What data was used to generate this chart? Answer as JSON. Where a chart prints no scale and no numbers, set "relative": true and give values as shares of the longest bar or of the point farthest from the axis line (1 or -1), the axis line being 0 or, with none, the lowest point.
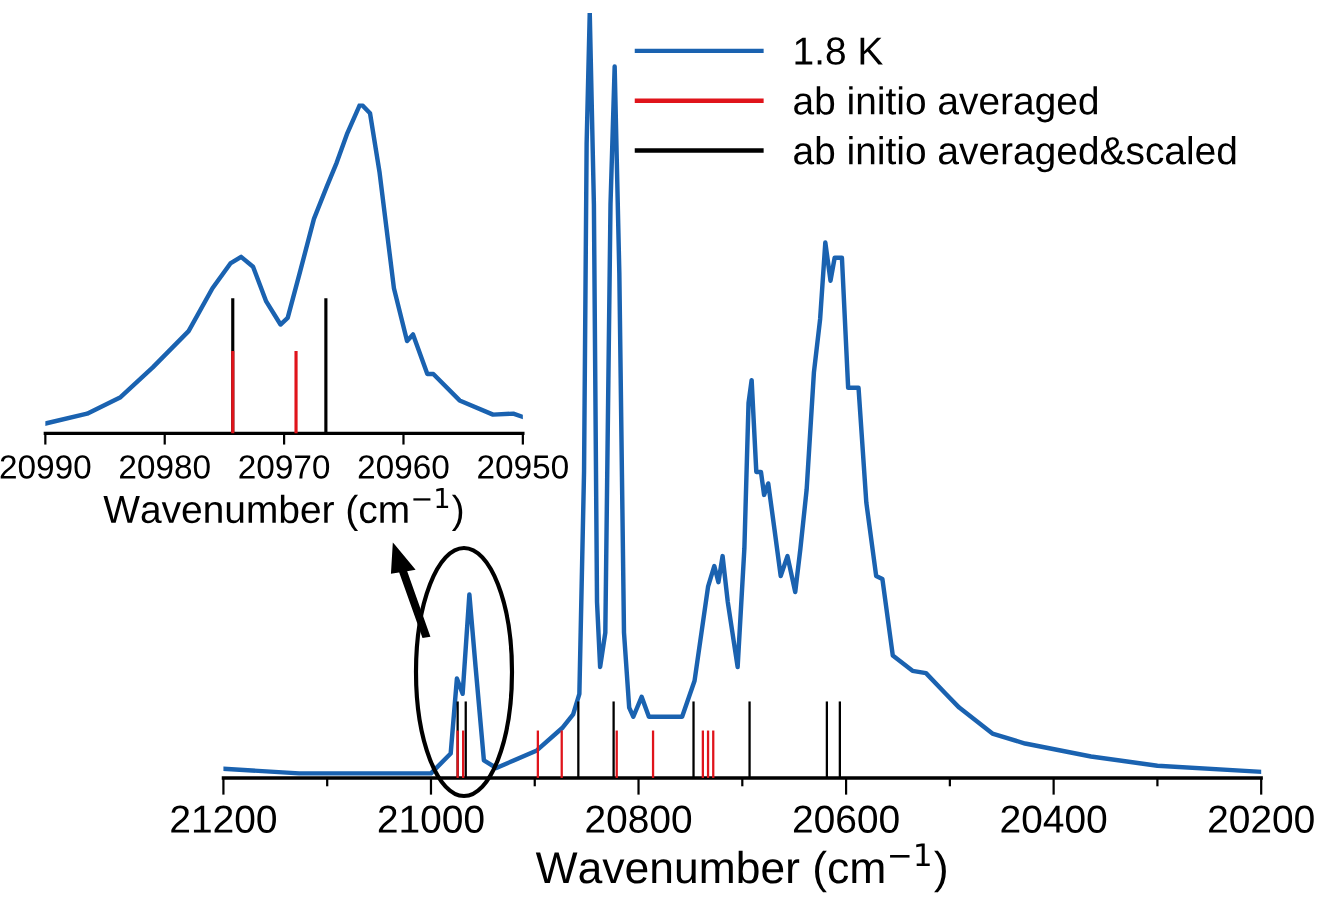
{
  "chart_data": [
    {
      "type": "line",
      "relative": true,
      "xlabel": "Wavenumber (cm$^{−1}$)",
      "xlim": [
        21200,
        20200
      ],
      "xticks": [
        21200,
        {
          "value": 21100,
          "label": null
        },
        21000,
        {
          "value": 20900,
          "label": null
        },
        20800,
        {
          "value": 20700,
          "label": null
        },
        20600,
        {
          "value": 20500,
          "label": null
        },
        20400,
        {
          "value": 20300,
          "label": null
        },
        20200
      ],
      "legend": "top right",
      "grid": false,
      "tick_labels": "x",
      "series": [
        {
          "name": "1.8 K",
          "color": "#1a62b0",
          "x": [
            21200,
            21127,
            21000,
            20981,
            20975,
            20969.5,
            20963,
            20957,
            20949,
            20937,
            20898,
            20873,
            20863,
            20857,
            20852.5,
            20850,
            20847,
            20843,
            20840,
            20837,
            20832,
            20827,
            20823,
            20818.5,
            20814,
            20809,
            20805,
            20797,
            20790,
            20771,
            20758,
            20746,
            20733,
            20727,
            20723,
            20719,
            20714,
            20704.5,
            20698,
            20694,
            20691,
            20686.5,
            20682,
            20679,
            20675,
            20669,
            20663,
            20656.5,
            20649,
            20644,
            20638,
            20631,
            20625,
            20620,
            20615,
            20611,
            20604,
            20598,
            20594,
            20588,
            20580.5,
            20571,
            20565,
            20555,
            20536,
            20523,
            20504,
            20491,
            20459,
            20427.5,
            20364,
            20300,
            20200
          ],
          "values": [
            0.012,
            0.006,
            0.006,
            0.032,
            0.13,
            0.11,
            0.24,
            0.145,
            0.023,
            0.013,
            0.036,
            0.066,
            0.083,
            0.11,
            0.4,
            0.83,
            1.0,
            0.75,
            0.23,
            0.145,
            0.19,
            0.75,
            0.93,
            0.66,
            0.19,
            0.092,
            0.08,
            0.106,
            0.08,
            0.08,
            0.08,
            0.127,
            0.25,
            0.277,
            0.256,
            0.29,
            0.23,
            0.145,
            0.3,
            0.49,
            0.52,
            0.4,
            0.4,
            0.37,
            0.385,
            0.325,
            0.264,
            0.29,
            0.243,
            0.3,
            0.377,
            0.53,
            0.6,
            0.7,
            0.65,
            0.68,
            0.68,
            0.51,
            0.51,
            0.51,
            0.36,
            0.264,
            0.26,
            0.16,
            0.14,
            0.137,
            0.11,
            0.092,
            0.058,
            0.045,
            0.028,
            0.016,
            0.008
          ]
        },
        {
          "name": "ab initio averaged",
          "type": "bar",
          "color": "#e0141b",
          "x": [
            20974.3,
            20969,
            20897,
            20874,
            20821,
            20786,
            20738,
            20733,
            20728
          ],
          "values": [
            0.062,
            0.062,
            0.062,
            0.062,
            0.062,
            0.062,
            0.062,
            0.062,
            0.062
          ]
        },
        {
          "name": "ab initio averaged&scaled",
          "type": "bar",
          "color": "#000000",
          "x": [
            20974.3,
            20966.5,
            20858,
            20824,
            20747,
            20693,
            20618.5,
            20606
          ],
          "values": [
            0.1,
            0.1,
            0.1,
            0.1,
            0.1,
            0.1,
            0.1,
            0.1
          ]
        }
      ]
    },
    {
      "type": "line",
      "relative": true,
      "xlabel": "Wavenumber (cm$^{−1}$)",
      "xlim": [
        20990,
        20950
      ],
      "xticks": [
        20990,
        20980,
        20970,
        20960,
        20950
      ],
      "grid": false,
      "tick_labels": "x",
      "series": [
        {
          "color": "#1a62b0",
          "x": [
            20990,
            20986.5,
            20983.7,
            20981,
            20978,
            20976,
            20974.5,
            20973.6,
            20972.6,
            20971.5,
            20970.3,
            20969.7,
            20968.7,
            20967.5,
            20966.4,
            20965.6,
            20964.7,
            20963.6,
            20962.8,
            20962,
            20960.8,
            20959.7,
            20959.2,
            20958,
            20957.5,
            20955.3,
            20952.5,
            20950.8,
            20950
          ],
          "values": [
            0.03,
            0.06,
            0.11,
            0.2,
            0.31,
            0.44,
            0.515,
            0.535,
            0.505,
            0.4,
            0.33,
            0.35,
            0.485,
            0.65,
            0.75,
            0.82,
            0.91,
            1.0,
            0.97,
            0.79,
            0.44,
            0.28,
            0.3,
            0.18,
            0.18,
            0.1,
            0.057,
            0.06,
            0.05
          ]
        },
        {
          "type": "bar",
          "color": "#e0141b",
          "x": [
            20974.3,
            20969
          ],
          "values": [
            0.25,
            0.25
          ]
        },
        {
          "type": "bar",
          "color": "#000000",
          "x": [
            20974.3,
            20966.5
          ],
          "values": [
            0.41,
            0.41
          ]
        }
      ]
    }
  ]
}
